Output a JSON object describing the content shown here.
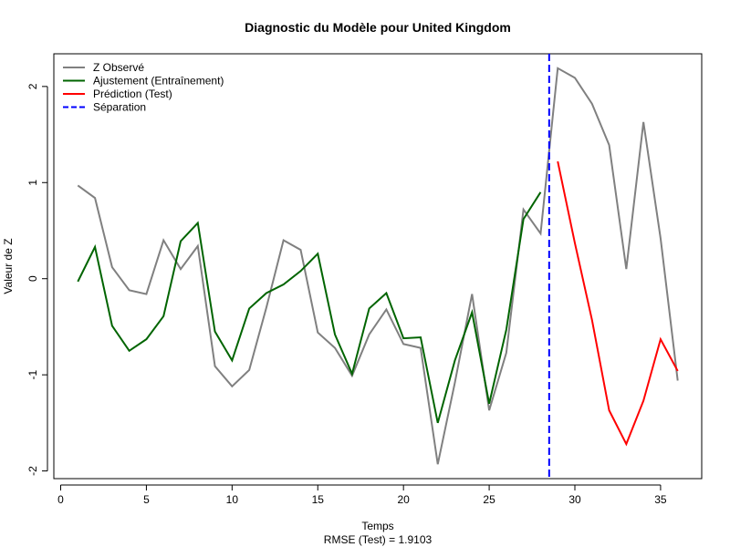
{
  "chart_data": {
    "type": "line",
    "title": "Diagnostic du Modèle pour United Kingdom",
    "xlabel": "Temps",
    "subtitle": "RMSE (Test) = 1.9103",
    "ylabel": "Valeur de Z",
    "xlim": [
      -0.4,
      37.4
    ],
    "ylim": [
      -2.08,
      2.34
    ],
    "x_ticks": [
      0,
      5,
      10,
      15,
      20,
      25,
      30,
      35
    ],
    "x_tick_labels": [
      "0",
      "5",
      "10",
      "15",
      "20",
      "25",
      "30",
      "35"
    ],
    "y_ticks": [
      -2,
      -1,
      0,
      1,
      2
    ],
    "y_tick_labels": [
      "-2",
      "-1",
      "0",
      "1",
      "2"
    ],
    "legend_position": "top-left",
    "separation_x": 28.5,
    "series": [
      {
        "name": "Z Observé",
        "color": "#808080",
        "x": [
          1,
          2,
          3,
          4,
          5,
          6,
          7,
          8,
          9,
          10,
          11,
          12,
          13,
          14,
          15,
          16,
          17,
          18,
          19,
          20,
          21,
          22,
          23,
          24,
          25,
          26,
          27,
          28,
          29,
          30,
          31,
          32,
          33,
          34,
          35,
          36
        ],
        "y": [
          0.97,
          0.84,
          0.12,
          -0.12,
          -0.16,
          0.4,
          0.1,
          0.34,
          -0.91,
          -1.12,
          -0.95,
          -0.3,
          0.4,
          0.3,
          -0.56,
          -0.72,
          -1.01,
          -0.58,
          -0.32,
          -0.68,
          -0.72,
          -1.93,
          -1.08,
          -0.16,
          -1.37,
          -0.77,
          0.72,
          0.47,
          2.19,
          2.09,
          1.82,
          1.39,
          0.1,
          1.63,
          0.42,
          -1.06
        ]
      },
      {
        "name": "Ajustement (Entraînement)",
        "color": "#006400",
        "x": [
          1,
          2,
          3,
          4,
          5,
          6,
          7,
          8,
          9,
          10,
          11,
          12,
          13,
          14,
          15,
          16,
          17,
          18,
          19,
          20,
          21,
          22,
          23,
          24,
          25,
          26,
          27,
          28
        ],
        "y": [
          -0.03,
          0.33,
          -0.49,
          -0.75,
          -0.63,
          -0.39,
          0.39,
          0.58,
          -0.55,
          -0.85,
          -0.31,
          -0.15,
          -0.06,
          0.08,
          0.26,
          -0.58,
          -0.99,
          -0.31,
          -0.15,
          -0.62,
          -0.61,
          -1.5,
          -0.85,
          -0.35,
          -1.3,
          -0.53,
          0.62,
          0.9
        ]
      },
      {
        "name": "Prédiction (Test)",
        "color": "#ff0000",
        "x": [
          29,
          30,
          31,
          32,
          33,
          34,
          35,
          36
        ],
        "y": [
          1.22,
          0.37,
          -0.43,
          -1.37,
          -1.72,
          -1.27,
          -0.63,
          -0.96
        ]
      }
    ],
    "legend": [
      {
        "label": "Z Observé",
        "color": "#808080",
        "style": "solid"
      },
      {
        "label": "Ajustement (Entraînement)",
        "color": "#006400",
        "style": "solid"
      },
      {
        "label": "Prédiction (Test)",
        "color": "#ff0000",
        "style": "solid"
      },
      {
        "label": "Séparation",
        "color": "#0000ff",
        "style": "dashed"
      }
    ]
  }
}
